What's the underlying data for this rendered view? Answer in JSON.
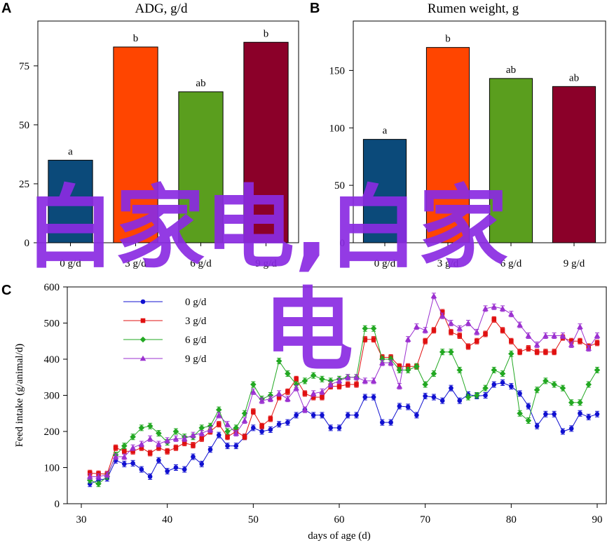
{
  "panels": {
    "A": {
      "letter": "A",
      "title": "ADG, g/d"
    },
    "B": {
      "letter": "B",
      "title": "Rumen weight, g"
    },
    "C": {
      "letter": "C"
    }
  },
  "watermark": {
    "line1": "白家电,白家",
    "line2": "电",
    "color": "#8a2be2"
  },
  "chart_data": [
    {
      "type": "bar",
      "title": "ADG, g/d",
      "categories": [
        "0 g/d",
        "3 g/d",
        "6 g/d",
        "9 g/d"
      ],
      "values": [
        35,
        83,
        64,
        85
      ],
      "letters": [
        "a",
        "b",
        "ab",
        "b"
      ],
      "colors": [
        "#0b4a7a",
        "#ff4500",
        "#5a9e1e",
        "#8b0029"
      ],
      "yticks": [
        0,
        25,
        50,
        75
      ],
      "ylim": [
        0,
        94
      ]
    },
    {
      "type": "bar",
      "title": "Rumen weight, g",
      "categories": [
        "0 g/d",
        "3 g/d",
        "6 g/d",
        "9 g/d"
      ],
      "values": [
        90,
        170,
        143,
        136
      ],
      "letters": [
        "a",
        "b",
        "ab",
        "ab"
      ],
      "colors": [
        "#0b4a7a",
        "#ff4500",
        "#5a9e1e",
        "#8b0029"
      ],
      "yticks": [
        0,
        50,
        100,
        150
      ],
      "ylim": [
        0,
        193
      ]
    },
    {
      "type": "line",
      "xlabel": "days of age (d)",
      "ylabel": "Feed intake (g/animal/d)",
      "xlim": [
        30,
        90
      ],
      "ylim": [
        0,
        600
      ],
      "xticks": [
        30,
        40,
        50,
        60,
        70,
        80,
        90
      ],
      "yticks": [
        0,
        100,
        200,
        300,
        400,
        500,
        600
      ],
      "legend_position": "top-left",
      "x": [
        31,
        32,
        33,
        34,
        35,
        36,
        37,
        38,
        39,
        40,
        41,
        42,
        43,
        44,
        45,
        46,
        47,
        48,
        49,
        50,
        51,
        52,
        53,
        54,
        55,
        56,
        57,
        58,
        59,
        60,
        61,
        62,
        63,
        64,
        65,
        66,
        67,
        68,
        69,
        70,
        71,
        72,
        73,
        74,
        75,
        76,
        77,
        78,
        79,
        80,
        81,
        82,
        83,
        84,
        85,
        86,
        87,
        88,
        89,
        90
      ],
      "series": [
        {
          "name": "0 g/d",
          "color": "#1010d0",
          "marker": "circle",
          "values": [
            55,
            65,
            70,
            120,
            110,
            112,
            95,
            75,
            120,
            90,
            100,
            95,
            130,
            110,
            150,
            190,
            160,
            160,
            185,
            210,
            200,
            205,
            220,
            225,
            245,
            260,
            245,
            245,
            210,
            210,
            245,
            245,
            295,
            295,
            225,
            225,
            270,
            268,
            245,
            298,
            295,
            285,
            320,
            285,
            302,
            298,
            300,
            330,
            335,
            325,
            305,
            270,
            215,
            248,
            248,
            200,
            208,
            250,
            240,
            248
          ]
        },
        {
          "name": "3 g/d",
          "color": "#e01010",
          "marker": "square",
          "values": [
            85,
            83,
            82,
            155,
            145,
            145,
            155,
            140,
            155,
            145,
            155,
            168,
            162,
            180,
            200,
            220,
            185,
            200,
            185,
            255,
            215,
            235,
            295,
            310,
            345,
            305,
            295,
            295,
            325,
            325,
            330,
            330,
            455,
            455,
            405,
            405,
            380,
            380,
            380,
            450,
            480,
            530,
            475,
            465,
            435,
            450,
            470,
            510,
            480,
            450,
            420,
            430,
            420,
            420,
            420,
            460,
            450,
            450,
            435,
            445
          ]
        },
        {
          "name": "6 g/d",
          "color": "#22a822",
          "marker": "diamond",
          "values": [
            65,
            55,
            75,
            135,
            160,
            185,
            210,
            215,
            195,
            170,
            200,
            185,
            185,
            210,
            215,
            260,
            200,
            210,
            250,
            330,
            290,
            300,
            395,
            360,
            330,
            340,
            355,
            345,
            340,
            345,
            350,
            350,
            485,
            485,
            400,
            400,
            370,
            370,
            380,
            330,
            360,
            420,
            420,
            370,
            295,
            300,
            320,
            370,
            360,
            415,
            250,
            230,
            315,
            340,
            330,
            320,
            280,
            280,
            330,
            370
          ]
        },
        {
          "name": "9 g/d",
          "color": "#9b30d0",
          "marker": "triangle",
          "values": [
            75,
            75,
            80,
            130,
            130,
            155,
            165,
            180,
            165,
            175,
            180,
            180,
            190,
            195,
            205,
            245,
            220,
            195,
            230,
            310,
            285,
            290,
            305,
            290,
            320,
            260,
            305,
            310,
            330,
            340,
            350,
            350,
            340,
            340,
            390,
            390,
            325,
            455,
            490,
            480,
            575,
            520,
            500,
            485,
            500,
            475,
            540,
            545,
            540,
            525,
            495,
            465,
            440,
            465,
            465,
            465,
            440,
            490,
            430,
            465
          ]
        }
      ]
    }
  ]
}
